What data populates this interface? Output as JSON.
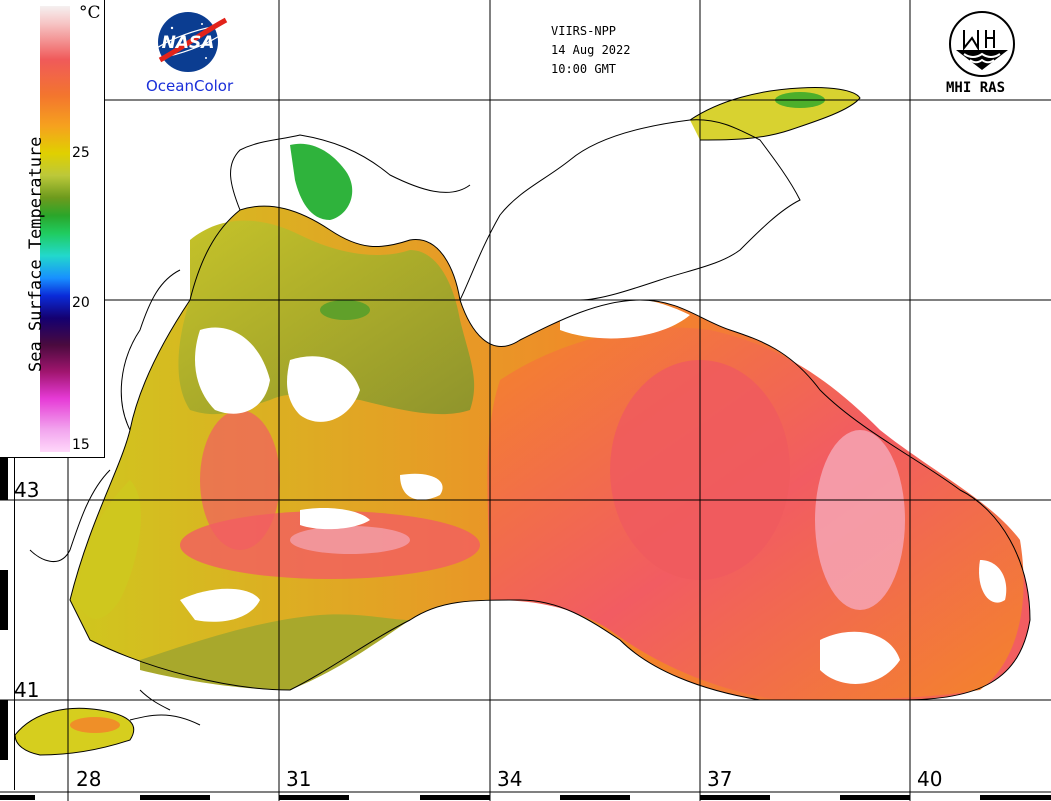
{
  "header": {
    "satellite": "VIIRS-NPP",
    "date": "14 Aug 2022",
    "time": "10:00 GMT"
  },
  "logos": {
    "nasa_text": "NASA",
    "nasa_caption": "OceanColor",
    "mhi_caption": "MHI RAS"
  },
  "legend": {
    "title": "Sea Surface Temperature",
    "unit": "°C",
    "ticks": [
      "25",
      "20",
      "15"
    ]
  },
  "grid": {
    "latitudes": [
      "43",
      "41"
    ],
    "longitudes": [
      "28",
      "31",
      "34",
      "37",
      "40"
    ]
  },
  "colors": {
    "pink": "#f25c62",
    "orange": "#f3842a",
    "yellow": "#dfd200",
    "olive": "#a8a82c",
    "green": "#2aa62a",
    "water_light": "#f6a5b4",
    "coastline": "#000000",
    "nasa_blue": "#1a2fd9"
  }
}
